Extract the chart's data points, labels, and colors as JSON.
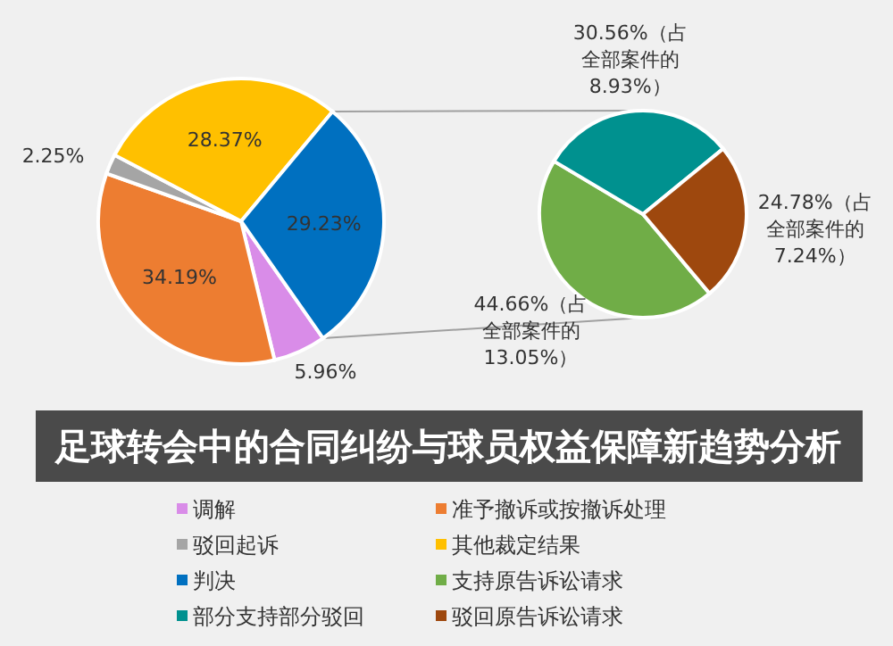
{
  "chart_data": [
    {
      "type": "pie",
      "title": "足球转会中的合同纠纷与球员权益保障新趋势分析",
      "categories": [
        "调解",
        "准予撤诉或按撤诉处理",
        "驳回起诉",
        "其他裁定结果",
        "判决"
      ],
      "values": [
        5.96,
        34.19,
        2.25,
        28.37,
        29.23
      ],
      "colors": [
        "#d98ce8",
        "#ed7d31",
        "#a5a5a5",
        "#ffc000",
        "#0070c0"
      ],
      "value_labels": [
        "5.96%",
        "34.19%",
        "2.25%",
        "28.37%",
        "29.23%"
      ],
      "legend": "bottom"
    },
    {
      "type": "pie",
      "categories": [
        "支持原告诉讼请求",
        "部分支持部分驳回",
        "驳回原告诉讼请求"
      ],
      "values": [
        44.66,
        30.56,
        24.78
      ],
      "colors": [
        "#70ad47",
        "#00918f",
        "#9e480e"
      ],
      "value_labels": [
        "44.66%（占全部案件的13.05%）",
        "30.56%（占全部案件的8.93%）",
        "24.78%（占全部案件的7.24%）"
      ],
      "legend": "bottom"
    }
  ]
}
